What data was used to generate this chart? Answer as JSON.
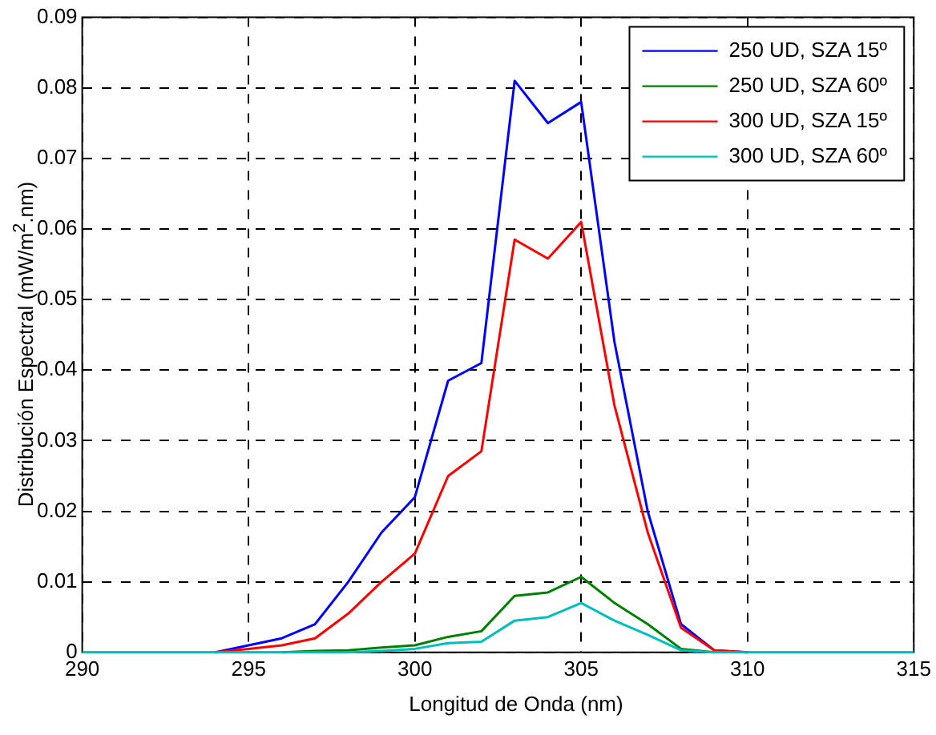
{
  "chart_data": {
    "type": "line",
    "xlabel": "Longitud de Onda (nm)",
    "ylabel": "Distribución Espectral (mW/m$^{2}$.nm)",
    "x": [
      290,
      291,
      292,
      293,
      294,
      295,
      296,
      297,
      298,
      299,
      300,
      301,
      302,
      303,
      304,
      305,
      306,
      307,
      308,
      309,
      310,
      311,
      312,
      313,
      314,
      315
    ],
    "series": [
      {
        "name": "250 UD, SZA 15º",
        "color": "#0000ff",
        "values": [
          null,
          null,
          null,
          null,
          0,
          0.001,
          0.002,
          0.004,
          0.01,
          0.017,
          0.022,
          0.0385,
          0.041,
          0.081,
          0.075,
          0.078,
          0.044,
          0.02,
          0.004,
          0.0003,
          0,
          null,
          null,
          null,
          null,
          null
        ]
      },
      {
        "name": "250 UD, SZA 60º",
        "color": "#008000",
        "values": [
          null,
          null,
          null,
          null,
          null,
          null,
          0,
          0.0002,
          0.0003,
          0.0007,
          0.001,
          0.0022,
          0.003,
          0.008,
          0.0085,
          0.0107,
          0.007,
          0.004,
          0.0005,
          0,
          null,
          null,
          null,
          null,
          null,
          null
        ]
      },
      {
        "name": "300 UD, SZA 15º",
        "color": "#ff0000",
        "values": [
          null,
          null,
          null,
          null,
          0,
          0.0005,
          0.001,
          0.002,
          0.0055,
          0.01,
          0.014,
          0.025,
          0.0285,
          0.0585,
          0.0558,
          0.061,
          0.035,
          0.017,
          0.0035,
          0.0003,
          0,
          null,
          null,
          null,
          null,
          null
        ]
      },
      {
        "name": "300 UD, SZA 60º",
        "color": "#00bfbf",
        "values": [
          0,
          0,
          0,
          0,
          0,
          0,
          0,
          0,
          0,
          0.0002,
          0.0005,
          0.0013,
          0.0015,
          0.0045,
          0.005,
          0.007,
          0.0045,
          0.0025,
          0.0003,
          0,
          0,
          0,
          0,
          0,
          0,
          0
        ]
      }
    ],
    "xlim": [
      290,
      315
    ],
    "xticks": [
      290,
      295,
      300,
      305,
      310,
      315
    ],
    "ylim": [
      0,
      0.09
    ],
    "yticks": [
      0,
      0.01,
      0.02,
      0.03,
      0.04,
      0.05,
      0.06,
      0.07,
      0.08,
      0.09
    ],
    "grid": true,
    "legend": "top right",
    "line_style": "solid",
    "marker": "none"
  }
}
